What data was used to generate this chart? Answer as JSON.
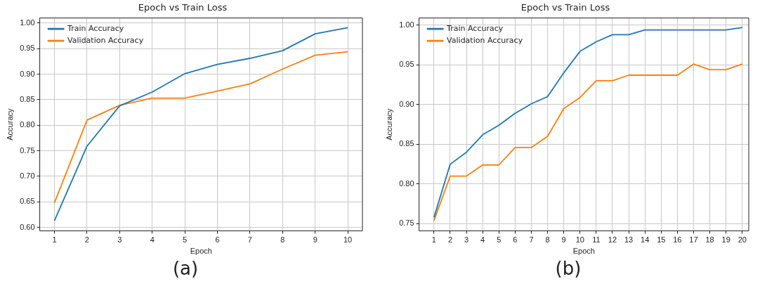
{
  "chart_data": [
    {
      "type": "line",
      "title": "Epoch vs Train Loss",
      "xlabel": "Epoch",
      "ylabel": "Accuracy",
      "x": [
        1,
        2,
        3,
        4,
        5,
        6,
        7,
        8,
        9,
        10
      ],
      "xlim": [
        0.55,
        10.45
      ],
      "xticks": [
        1,
        2,
        3,
        4,
        5,
        6,
        7,
        8,
        9,
        10
      ],
      "ylim": [
        0.593,
        1.01
      ],
      "yticks": [
        {
          "value": 0.6,
          "label": "0.60"
        },
        {
          "value": 0.65,
          "label": "0.65"
        },
        {
          "value": 0.7,
          "label": "0.70"
        },
        {
          "value": 0.75,
          "label": "0.75"
        },
        {
          "value": 0.8,
          "label": "0.80"
        },
        {
          "value": 0.85,
          "label": "0.85"
        },
        {
          "value": 0.9,
          "label": "0.90"
        },
        {
          "value": 0.95,
          "label": "0.95"
        },
        {
          "value": 1.0,
          "label": "1.00"
        }
      ],
      "grid": true,
      "legend": "top left",
      "annotations": [
        "(a)"
      ],
      "series": [
        {
          "name": "Train Accuracy",
          "color": "#1f77b4",
          "values": [
            0.613,
            0.759,
            0.838,
            0.865,
            0.901,
            0.919,
            0.931,
            0.946,
            0.979,
            0.991
          ]
        },
        {
          "name": "Validation Accuracy",
          "color": "#ff7f0e",
          "values": [
            0.648,
            0.81,
            0.839,
            0.853,
            0.853,
            0.867,
            0.881,
            0.91,
            0.937,
            0.944
          ]
        }
      ]
    },
    {
      "type": "line",
      "title": "Epoch vs Train Loss",
      "xlabel": "Epoch",
      "ylabel": "Accuracy",
      "x": [
        1,
        2,
        3,
        4,
        5,
        6,
        7,
        8,
        9,
        10,
        11,
        12,
        13,
        14,
        15,
        16,
        17,
        18,
        19,
        20
      ],
      "xlim": [
        0.08,
        20.4
      ],
      "xticks": [
        1,
        2,
        3,
        4,
        5,
        6,
        7,
        8,
        9,
        10,
        11,
        12,
        13,
        14,
        15,
        16,
        17,
        18,
        19,
        20
      ],
      "ylim": [
        0.741,
        1.009
      ],
      "yticks": [
        {
          "value": 0.75,
          "label": "0.75"
        },
        {
          "value": 0.8,
          "label": "0.80"
        },
        {
          "value": 0.85,
          "label": "0.85"
        },
        {
          "value": 0.9,
          "label": "0.90"
        },
        {
          "value": 0.95,
          "label": "0.95"
        },
        {
          "value": 1.0,
          "label": "1.00"
        }
      ],
      "grid": true,
      "legend": "top left",
      "annotations": [
        "(b)"
      ],
      "series": [
        {
          "name": "Train Accuracy",
          "color": "#1f77b4",
          "values": [
            0.758,
            0.825,
            0.84,
            0.862,
            0.874,
            0.889,
            0.901,
            0.91,
            0.94,
            0.967,
            0.979,
            0.988,
            0.988,
            0.994,
            0.994,
            0.994,
            0.994,
            0.994,
            0.994,
            0.997
          ]
        },
        {
          "name": "Validation Accuracy",
          "color": "#ff7f0e",
          "values": [
            0.754,
            0.81,
            0.81,
            0.824,
            0.824,
            0.846,
            0.846,
            0.86,
            0.895,
            0.909,
            0.93,
            0.93,
            0.937,
            0.937,
            0.937,
            0.937,
            0.951,
            0.944,
            0.944,
            0.951
          ]
        }
      ]
    }
  ]
}
